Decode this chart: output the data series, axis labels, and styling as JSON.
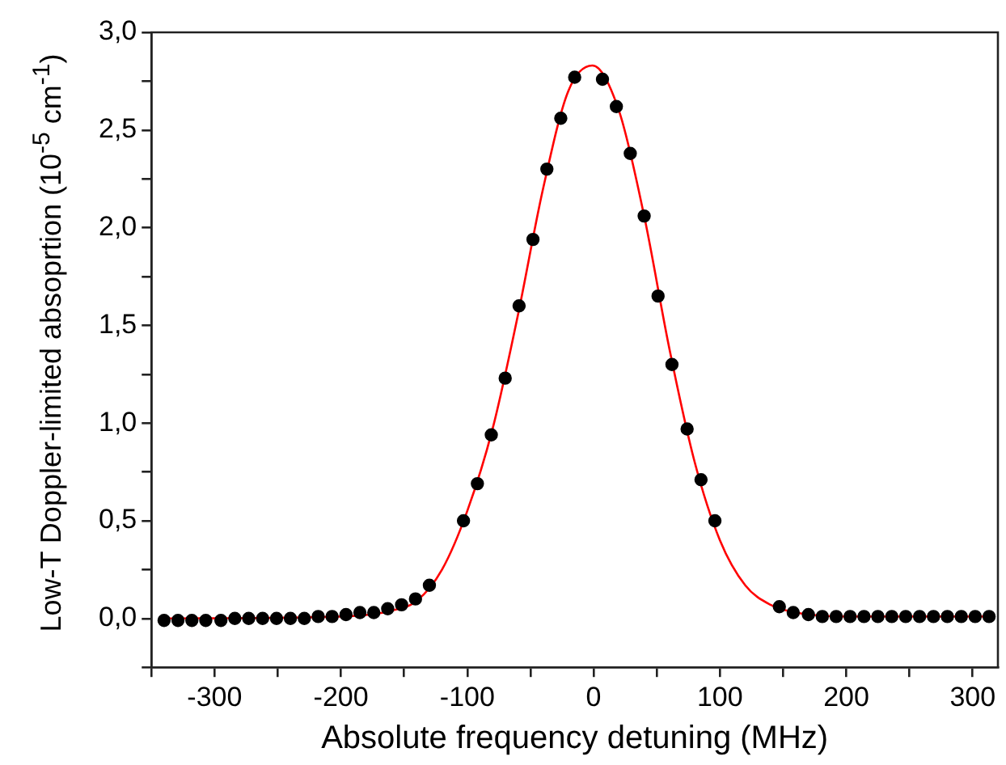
{
  "chart_data": {
    "type": "scatter",
    "xlabel": "Absolute frequency detuning (MHz)",
    "ylabel": "Low-T Doppler-limited absoprtion (10$^{-5}$ cm$^{-1}$)",
    "xlim": [
      -350,
      320
    ],
    "ylim": [
      -0.25,
      3.0
    ],
    "xticks": [
      {
        "value": -350,
        "label": null
      },
      -300,
      {
        "value": -250,
        "label": null
      },
      -200,
      {
        "value": -150,
        "label": null
      },
      -100,
      {
        "value": -50,
        "label": null
      },
      0,
      {
        "value": 50,
        "label": null
      },
      100,
      {
        "value": 150,
        "label": null
      },
      200,
      {
        "value": 250,
        "label": null
      },
      300
    ],
    "yticks": [
      {
        "value": -0.25,
        "label": null
      },
      {
        "value": 0,
        "label": "0,0"
      },
      {
        "value": 0.25,
        "label": null
      },
      {
        "value": 0.5,
        "label": "0,5"
      },
      {
        "value": 0.75,
        "label": null
      },
      {
        "value": 1,
        "label": "1,0"
      },
      {
        "value": 1.25,
        "label": null
      },
      {
        "value": 1.5,
        "label": "1,5"
      },
      {
        "value": 1.75,
        "label": null
      },
      {
        "value": 2,
        "label": "2,0"
      },
      {
        "value": 2.25,
        "label": null
      },
      {
        "value": 2.5,
        "label": "2,5"
      },
      {
        "value": 2.75,
        "label": null
      },
      {
        "value": 3,
        "label": "3,0"
      }
    ],
    "grid": false,
    "legend": false,
    "series": [
      {
        "marker": "circle",
        "color": "#000000",
        "x": [
          -340,
          -329,
          -318,
          -307,
          -295,
          -284,
          -273,
          -262,
          -251,
          -240,
          -229,
          -218,
          -207,
          -196,
          -185,
          -174,
          -163,
          -152,
          -141,
          -130,
          -103,
          -92,
          -81,
          -70,
          -59,
          -48,
          -37,
          -26,
          -15,
          7,
          18,
          29,
          40,
          51,
          62,
          74,
          85,
          96,
          147,
          158,
          170,
          181,
          192,
          203,
          214,
          225,
          236,
          247,
          258,
          269,
          280,
          291,
          302,
          313
        ],
        "values": [
          -0.01,
          -0.01,
          -0.01,
          -0.01,
          -0.01,
          0,
          0,
          0,
          0,
          0,
          0,
          0.01,
          0.01,
          0.02,
          0.03,
          0.03,
          0.05,
          0.07,
          0.1,
          0.17,
          0.5,
          0.69,
          0.94,
          1.23,
          1.6,
          1.94,
          2.3,
          2.56,
          2.77,
          2.76,
          2.62,
          2.38,
          2.06,
          1.65,
          1.3,
          0.97,
          0.71,
          0.5,
          0.06,
          0.03,
          0.02,
          0.01,
          0.01,
          0.01,
          0.01,
          0.01,
          0.01,
          0.01,
          0.01,
          0.01,
          0.01,
          0.01,
          0.01,
          0.01
        ]
      },
      {
        "type": "line",
        "marker": "none",
        "color": "#ff0000",
        "x": [
          -340,
          -200,
          -160,
          -140,
          -120,
          -100,
          -80,
          -60,
          -40,
          -20,
          -1,
          20,
          40,
          60,
          80,
          100,
          120,
          140,
          160,
          200,
          318
        ],
        "values": [
          0,
          0.01,
          0.04,
          0.09,
          0.25,
          0.55,
          0.97,
          1.55,
          2.2,
          2.7,
          2.83,
          2.6,
          2.06,
          1.38,
          0.8,
          0.4,
          0.17,
          0.07,
          0.03,
          0.01,
          0.01
        ]
      }
    ]
  }
}
